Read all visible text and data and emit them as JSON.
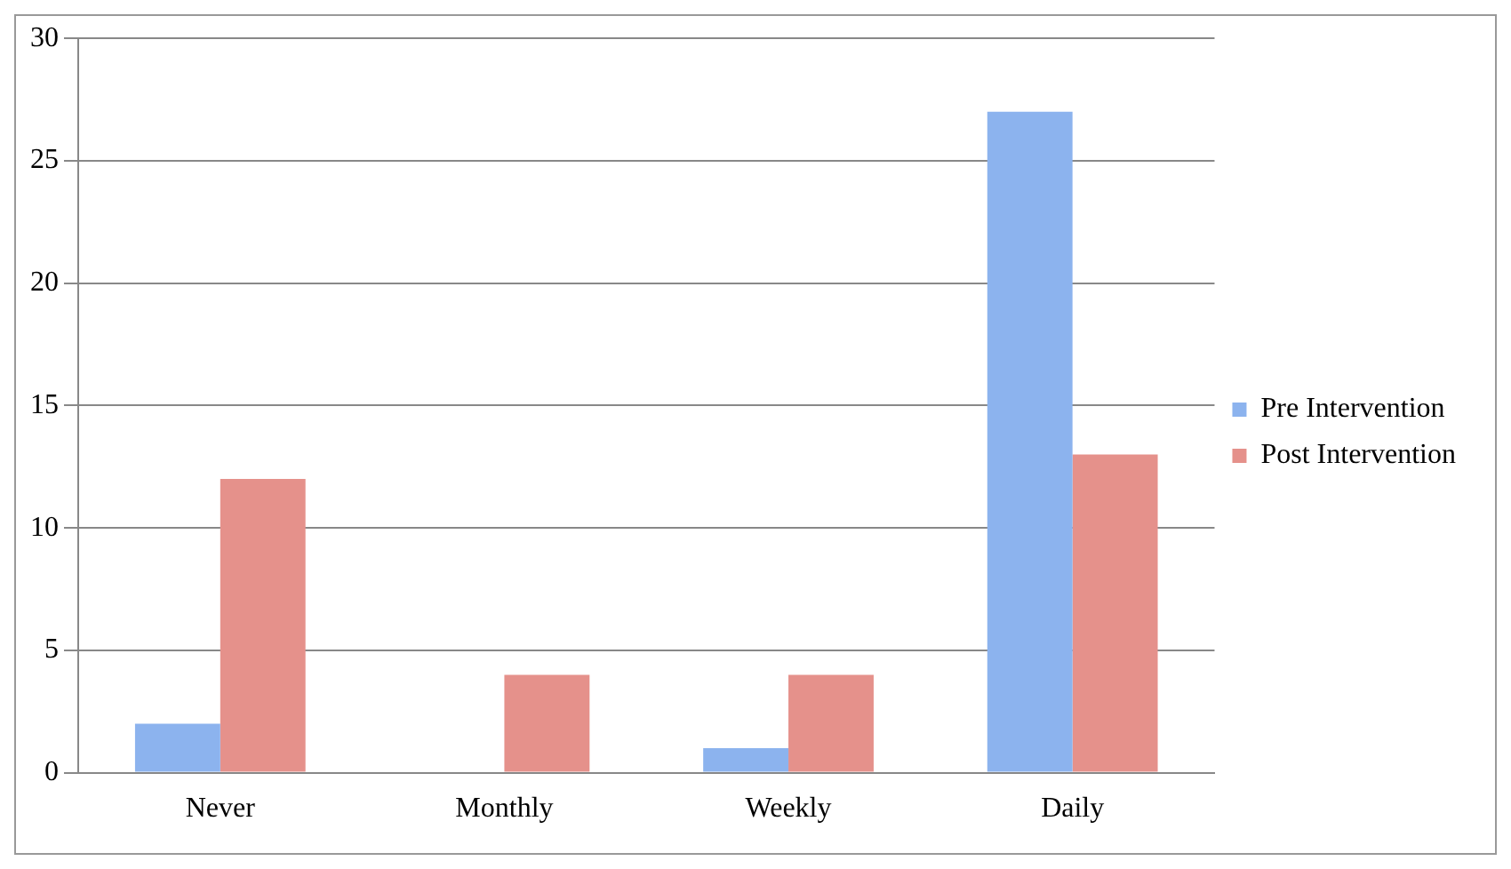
{
  "chart_data": {
    "type": "bar",
    "categories": [
      "Never",
      "Monthly",
      "Weekly",
      "Daily"
    ],
    "series": [
      {
        "name": "Pre Intervention",
        "color": "#8cb3ee",
        "values": [
          2,
          0,
          1,
          27
        ]
      },
      {
        "name": "Post Intervention",
        "color": "#e5918b",
        "values": [
          12,
          4,
          4,
          13
        ]
      }
    ],
    "ylim": [
      0,
      30
    ],
    "yticks": [
      0,
      5,
      10,
      15,
      20,
      25,
      30
    ],
    "grid": "y",
    "legend": "right"
  }
}
